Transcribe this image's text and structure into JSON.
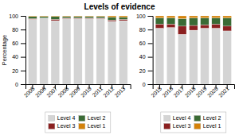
{
  "chart_data": [
    {
      "type": "bar",
      "stacked": true,
      "title": "Levels of evidence",
      "y_label": "Percentage",
      "categories": [
        "2005",
        "2006",
        "2007",
        "2008",
        "2009",
        "2010",
        "2011",
        "2012",
        "2013"
      ],
      "series": [
        {
          "name": "Level 4",
          "color": "#d4d4d4",
          "values": [
            95,
            97,
            93,
            96,
            96,
            96,
            96,
            92,
            93
          ]
        },
        {
          "name": "Level 3",
          "color": "#8b2020",
          "values": [
            1,
            0,
            2,
            1,
            1,
            1,
            1,
            2,
            2
          ]
        },
        {
          "name": "Level 2",
          "color": "#3a6b35",
          "values": [
            3,
            2,
            4,
            2,
            2,
            2,
            2,
            4,
            3
          ]
        },
        {
          "name": "Level 1",
          "color": "#d4820a",
          "values": [
            1,
            1,
            1,
            1,
            1,
            1,
            1,
            2,
            2
          ]
        }
      ],
      "ylim": [
        0,
        100
      ],
      "yticks": [
        0,
        20,
        40,
        60,
        80,
        100
      ],
      "legend": "bottom"
    },
    {
      "type": "bar",
      "stacked": true,
      "categories": [
        "2015",
        "2016",
        "2017",
        "2018",
        "2019",
        "2020",
        "2021"
      ],
      "series": [
        {
          "name": "Level 4",
          "color": "#d4d4d4",
          "values": [
            82,
            83,
            73,
            79,
            82,
            82,
            78
          ]
        },
        {
          "name": "Level 3",
          "color": "#8b2020",
          "values": [
            6,
            5,
            12,
            7,
            5,
            6,
            7
          ]
        },
        {
          "name": "Level 2",
          "color": "#3a6b35",
          "values": [
            9,
            9,
            11,
            11,
            10,
            9,
            12
          ]
        },
        {
          "name": "Level 1",
          "color": "#d4820a",
          "values": [
            3,
            3,
            4,
            3,
            3,
            3,
            3
          ]
        }
      ],
      "ylim": [
        0,
        100
      ],
      "yticks": [
        0,
        20,
        40,
        60,
        80,
        100
      ],
      "legend": "bottom"
    }
  ]
}
